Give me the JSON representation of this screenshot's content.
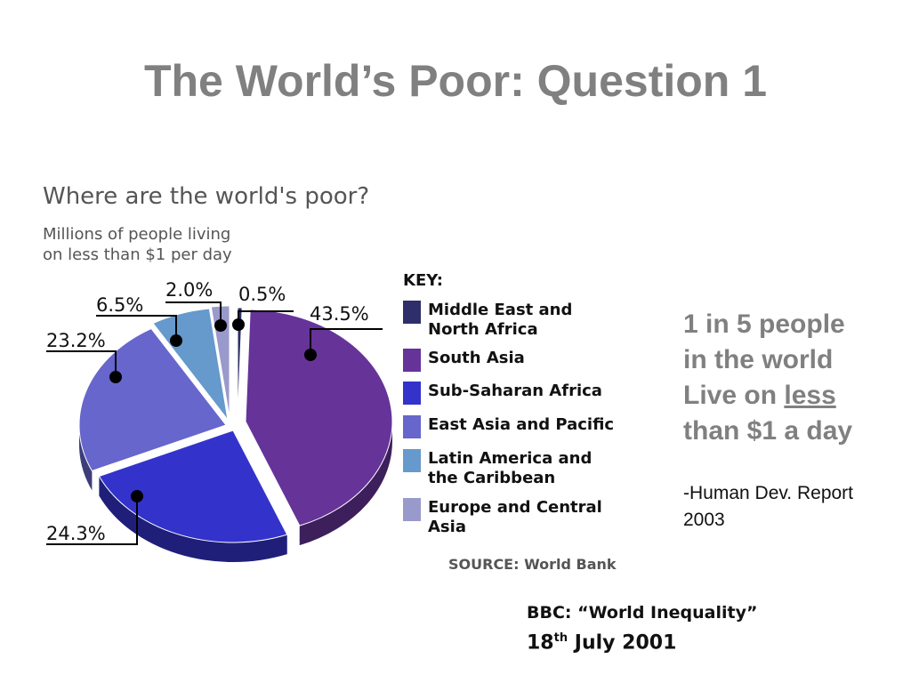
{
  "slide": {
    "title": "The World’s Poor: Question 1"
  },
  "chart_data": {
    "type": "pie",
    "title": "Where are the world's poor?",
    "subtitle_lines": [
      "Millions of people living",
      "on less than $1 per day"
    ],
    "key_heading": "KEY:",
    "source": "SOURCE: World Bank",
    "slices": [
      {
        "name": "Middle East and North Africa",
        "name_lines": [
          "Middle East and",
          "North Africa"
        ],
        "value": 0.5,
        "label": "0.5%",
        "color": "#2e2e6a"
      },
      {
        "name": "South Asia",
        "name_lines": [
          "South Asia"
        ],
        "value": 43.5,
        "label": "43.5%",
        "color": "#663399"
      },
      {
        "name": "Sub-Saharan Africa",
        "name_lines": [
          "Sub-Saharan Africa"
        ],
        "value": 24.3,
        "label": "24.3%",
        "color": "#3333cc"
      },
      {
        "name": "East Asia and Pacific",
        "name_lines": [
          "East Asia and Pacific"
        ],
        "value": 23.2,
        "label": "23.2%",
        "color": "#6666cc"
      },
      {
        "name": "Latin America and the Caribbean",
        "name_lines": [
          "Latin America and",
          "the Caribbean"
        ],
        "value": 6.5,
        "label": "6.5%",
        "color": "#6699cc"
      },
      {
        "name": "Europe and Central Asia",
        "name_lines": [
          "Europe and Central",
          "Asia"
        ],
        "value": 2.0,
        "label": "2.0%",
        "color": "#9999cc"
      }
    ]
  },
  "callout": {
    "lines": [
      "1 in 5 people",
      "in the world"
    ],
    "line3_prefix": "Live on ",
    "line3_underlined": "less",
    "line4": "than $1 a day"
  },
  "attribution": {
    "lines": [
      "-Human Dev. Report",
      "2003"
    ]
  },
  "bbc": {
    "line1": "BBC: “World Inequality”",
    "day": "18",
    "day_suffix": "th",
    "rest": " July 2001"
  }
}
